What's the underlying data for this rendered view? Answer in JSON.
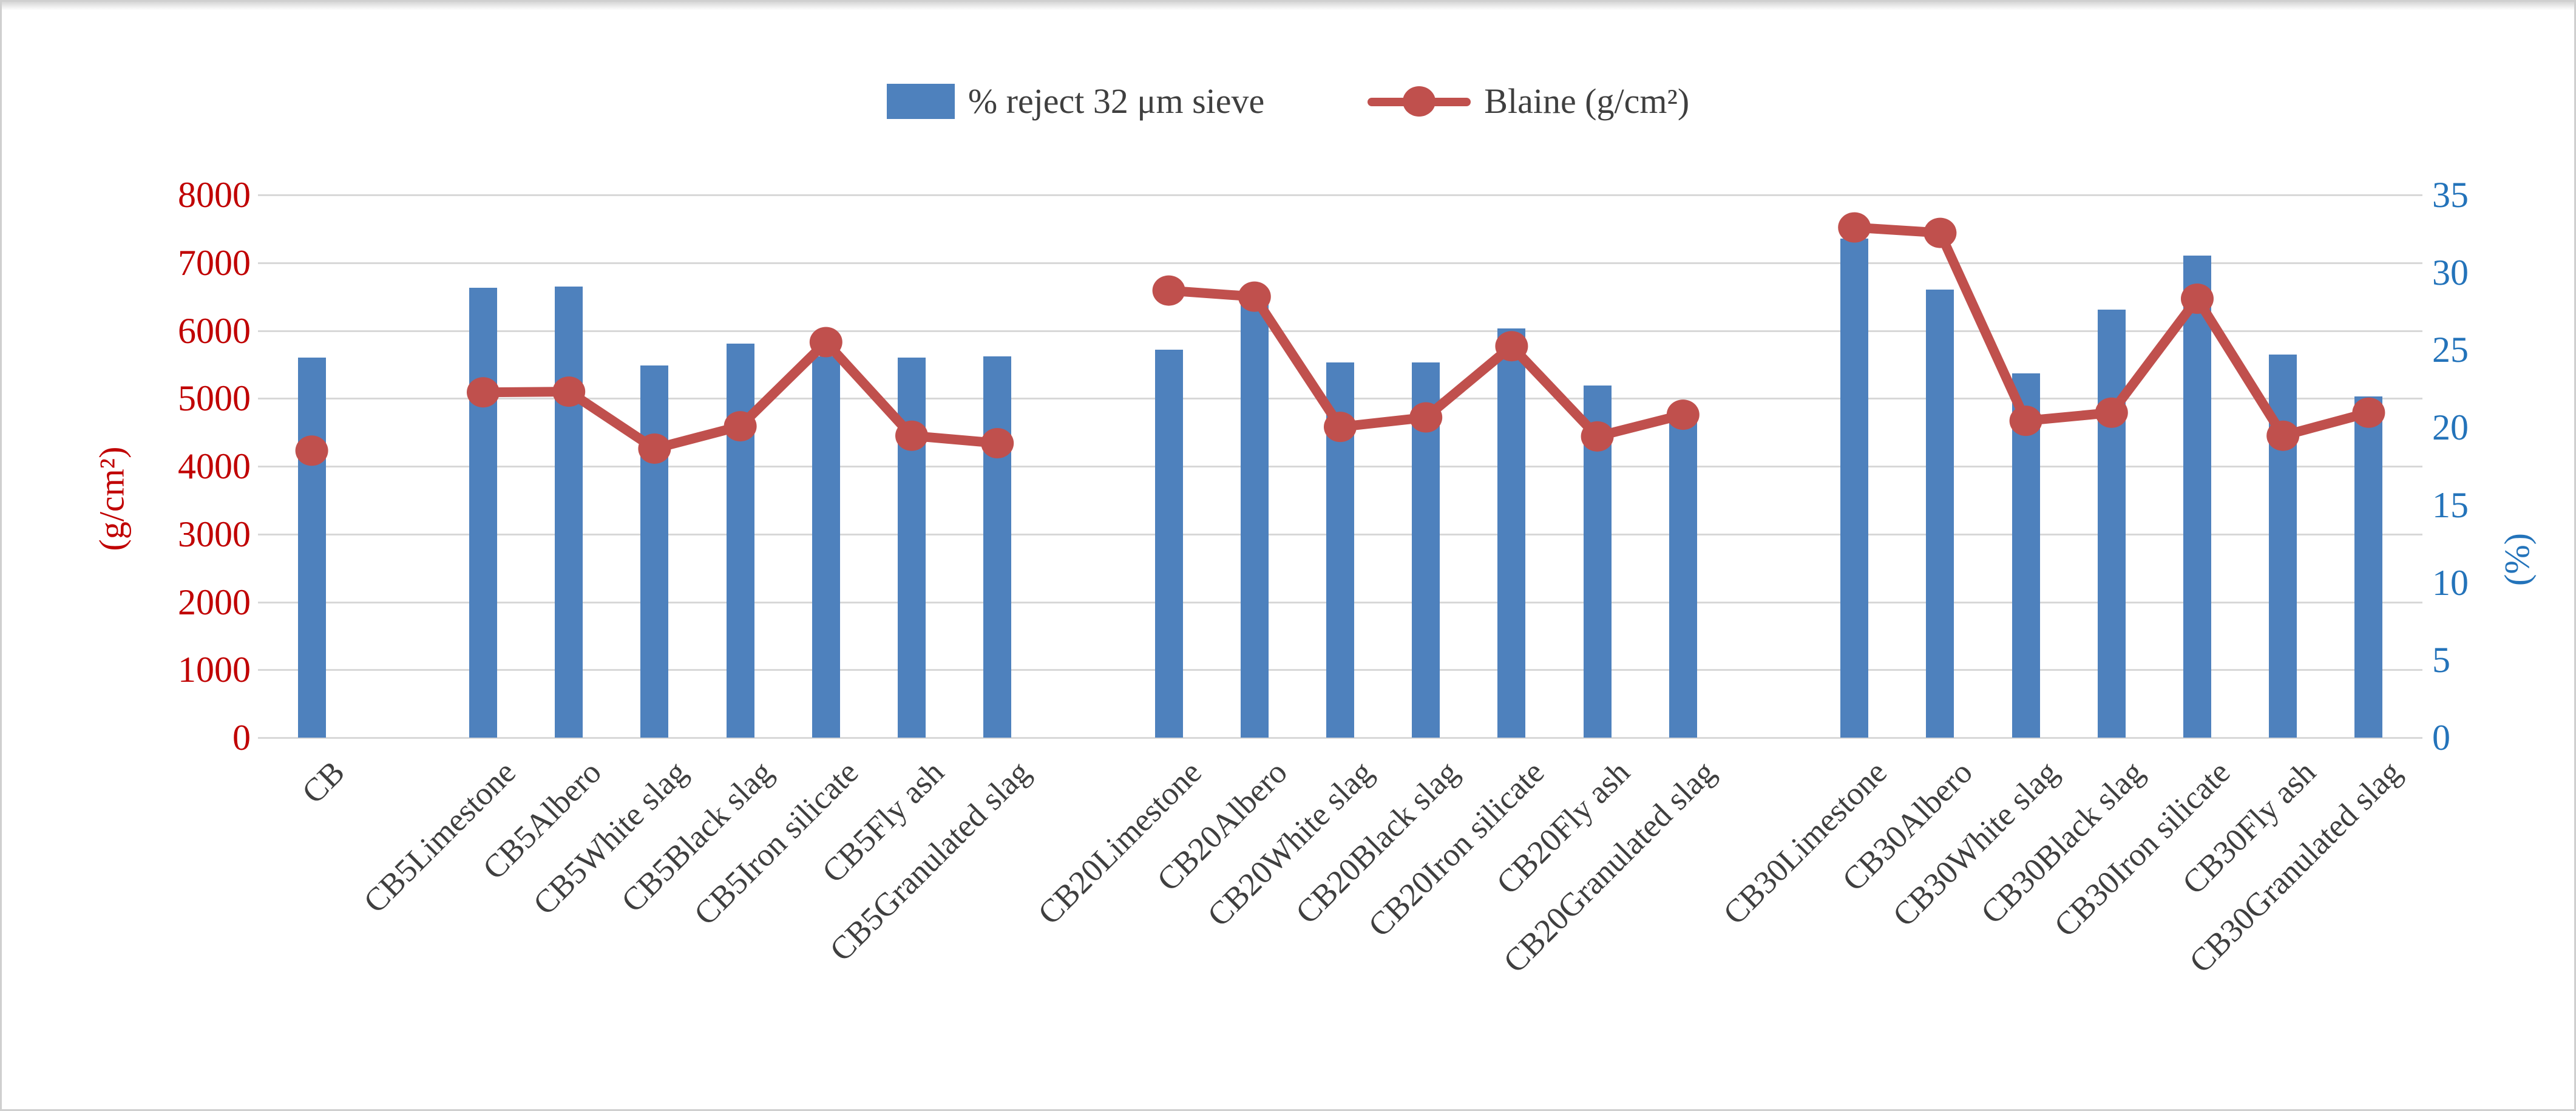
{
  "legend": {
    "bars_label": "% reject 32 μm sieve",
    "line_label": "Blaine (g/cm²)"
  },
  "left_axis": {
    "title": "(g/cm²)",
    "color": "#c00000",
    "min": 0,
    "max": 8000,
    "step": 1000,
    "ticks": [
      "0",
      "1000",
      "2000",
      "3000",
      "4000",
      "5000",
      "6000",
      "7000",
      "8000"
    ]
  },
  "right_axis": {
    "title": "(%)",
    "color": "#2373ba",
    "min": 0,
    "max": 35,
    "step": 5,
    "ticks": [
      "0",
      "5",
      "10",
      "15",
      "20",
      "25",
      "30",
      "35"
    ]
  },
  "chart_data": {
    "type": "combo (bar + line, dual axis)",
    "categories": [
      "CB",
      "CB5Limestone",
      "CB5Albero",
      "CB5White slag",
      "CB5Black slag",
      "CB5Iron silicate",
      "CB5Fly ash",
      "CB5Granulated slag",
      "CB20Limestone",
      "CB20Albero",
      "CB20White slag",
      "CB20Black slag",
      "CB20Iron silicate",
      "CB20Fly ash",
      "CB20Granulated slag",
      "CB30Limestone",
      "CB30Albero",
      "CB30White slag",
      "CB30Black slag",
      "CB30Iron silicate",
      "CB30Fly ash",
      "CB30Granulated slag"
    ],
    "series": [
      {
        "name": "% reject 32 μm sieve",
        "type": "bar",
        "axis": "right",
        "color": "#4e81bd",
        "values": [
          24.5,
          29.0,
          29.1,
          24.0,
          25.4,
          24.6,
          24.5,
          24.6,
          25.0,
          28.0,
          24.2,
          24.2,
          26.4,
          22.7,
          21.3,
          32.2,
          28.9,
          23.5,
          27.6,
          31.1,
          24.7,
          22.0
        ]
      },
      {
        "name": "Blaine (g/cm²)",
        "type": "line",
        "axis": "left",
        "color": "#c0504d",
        "values": [
          4230,
          5090,
          5100,
          4260,
          4590,
          5830,
          4450,
          4340,
          6590,
          6500,
          4580,
          4720,
          5770,
          4440,
          4760,
          7520,
          7440,
          4670,
          4790,
          6470,
          4450,
          4790
        ]
      }
    ],
    "layout": {
      "ylim_left": [
        0,
        8000
      ],
      "ylim_right": [
        0,
        35
      ],
      "gridlines": "horizontal every 1000 (left axis)",
      "legend_position": "top-center",
      "slot_count": 25,
      "category_slots": [
        0,
        2,
        3,
        4,
        5,
        6,
        7,
        8,
        10,
        11,
        12,
        13,
        14,
        15,
        16,
        18,
        19,
        20,
        21,
        22,
        23,
        24
      ],
      "line_segments": [
        [
          0
        ],
        [
          1,
          2,
          3,
          4,
          5,
          6,
          7
        ],
        [
          8,
          9,
          10,
          11,
          12,
          13,
          14
        ],
        [
          15,
          16,
          17,
          18,
          19,
          20,
          21
        ]
      ],
      "x_tick_labels_rotation_deg": -45
    }
  }
}
